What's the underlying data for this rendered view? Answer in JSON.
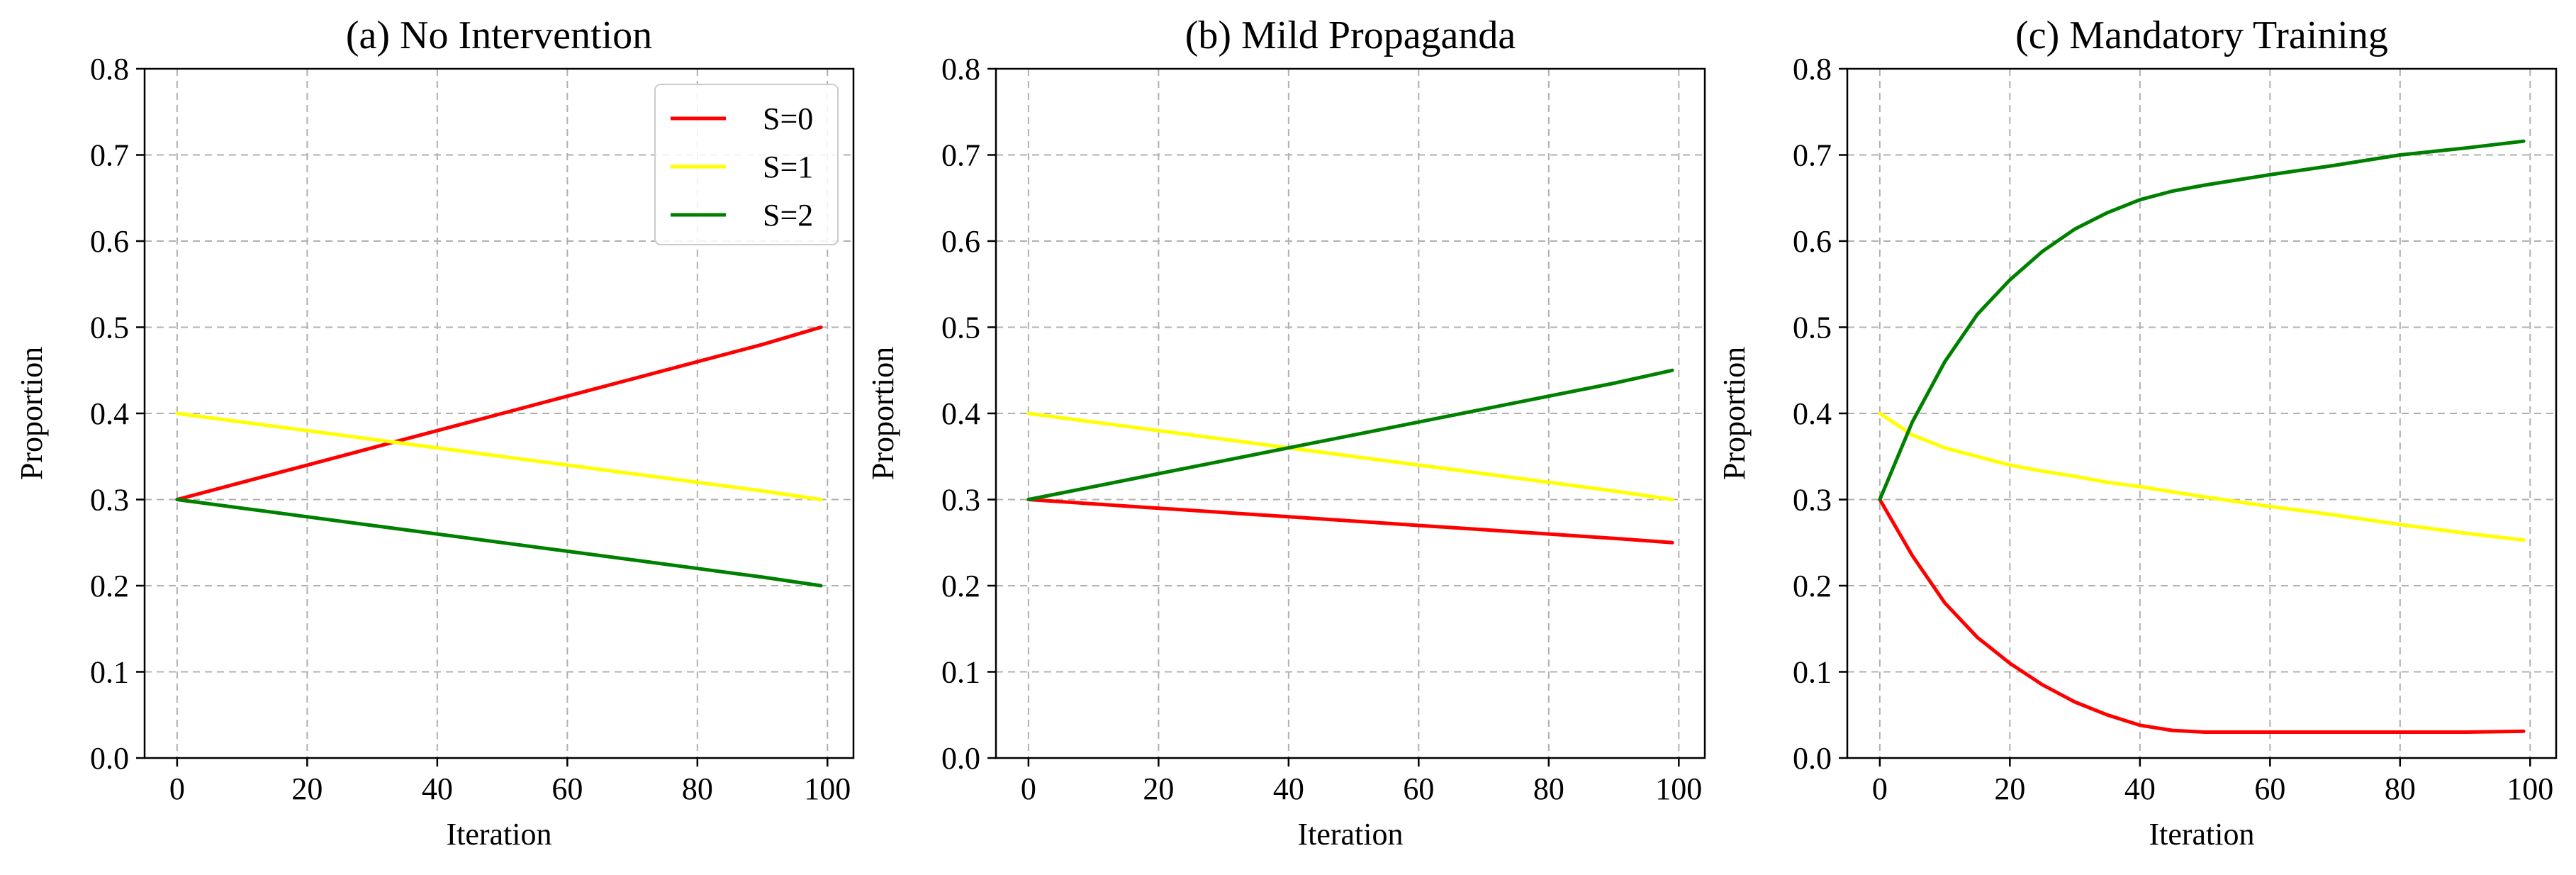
{
  "figure": {
    "panels": [
      "(a) No Intervention",
      "(b) Mild Propaganda",
      "(c) Mandatory Training"
    ]
  },
  "colors": {
    "S0": "#ff0000",
    "S1": "#ffff00",
    "S2": "#008000",
    "grid": "#b0b0b0",
    "axis": "#000000"
  },
  "chart_data": [
    {
      "type": "line",
      "title": "(a) No Intervention",
      "xlabel": "Iteration",
      "ylabel": "Proportion",
      "xlim": [
        -5,
        104
      ],
      "ylim": [
        0.0,
        0.8
      ],
      "xticks": [
        0,
        20,
        40,
        60,
        80,
        100
      ],
      "yticks": [
        "0.0",
        "0.1",
        "0.2",
        "0.3",
        "0.4",
        "0.5",
        "0.6",
        "0.7",
        "0.8"
      ],
      "grid": true,
      "legend": "top-right",
      "x": [
        0,
        10,
        20,
        30,
        40,
        50,
        60,
        70,
        80,
        90,
        99
      ],
      "series": [
        {
          "name": "S=0",
          "color": "#ff0000",
          "values": [
            0.3,
            0.32,
            0.34,
            0.36,
            0.38,
            0.4,
            0.42,
            0.44,
            0.46,
            0.48,
            0.5
          ]
        },
        {
          "name": "S=1",
          "color": "#ffff00",
          "values": [
            0.4,
            0.39,
            0.38,
            0.37,
            0.36,
            0.35,
            0.34,
            0.33,
            0.32,
            0.31,
            0.3
          ]
        },
        {
          "name": "S=2",
          "color": "#008000",
          "values": [
            0.3,
            0.29,
            0.28,
            0.27,
            0.26,
            0.25,
            0.24,
            0.23,
            0.22,
            0.21,
            0.2
          ]
        }
      ]
    },
    {
      "type": "line",
      "title": "(b) Mild Propaganda",
      "xlabel": "Iteration",
      "ylabel": "Proportion",
      "xlim": [
        -5,
        104
      ],
      "ylim": [
        0.0,
        0.8
      ],
      "xticks": [
        0,
        20,
        40,
        60,
        80,
        100
      ],
      "yticks": [
        "0.0",
        "0.1",
        "0.2",
        "0.3",
        "0.4",
        "0.5",
        "0.6",
        "0.7",
        "0.8"
      ],
      "grid": true,
      "x": [
        0,
        10,
        20,
        30,
        40,
        50,
        60,
        70,
        80,
        90,
        99
      ],
      "series": [
        {
          "name": "S=0",
          "color": "#ff0000",
          "values": [
            0.3,
            0.295,
            0.29,
            0.285,
            0.28,
            0.275,
            0.27,
            0.265,
            0.26,
            0.255,
            0.25
          ]
        },
        {
          "name": "S=1",
          "color": "#ffff00",
          "values": [
            0.4,
            0.39,
            0.38,
            0.37,
            0.36,
            0.35,
            0.34,
            0.33,
            0.32,
            0.31,
            0.3
          ]
        },
        {
          "name": "S=2",
          "color": "#008000",
          "values": [
            0.3,
            0.315,
            0.33,
            0.345,
            0.36,
            0.375,
            0.39,
            0.405,
            0.42,
            0.435,
            0.45
          ]
        }
      ]
    },
    {
      "type": "line",
      "title": "(c) Mandatory Training",
      "xlabel": "Iteration",
      "ylabel": "Proportion",
      "xlim": [
        -5,
        104
      ],
      "ylim": [
        0.0,
        0.8
      ],
      "xticks": [
        0,
        20,
        40,
        60,
        80,
        100
      ],
      "yticks": [
        "0.0",
        "0.1",
        "0.2",
        "0.3",
        "0.4",
        "0.5",
        "0.6",
        "0.7",
        "0.8"
      ],
      "grid": true,
      "x": [
        0,
        5,
        10,
        15,
        20,
        25,
        30,
        35,
        40,
        45,
        50,
        60,
        70,
        80,
        90,
        99
      ],
      "series": [
        {
          "name": "S=0",
          "color": "#ff0000",
          "values": [
            0.3,
            0.235,
            0.18,
            0.14,
            0.11,
            0.085,
            0.065,
            0.05,
            0.038,
            0.032,
            0.03,
            0.03,
            0.03,
            0.03,
            0.03,
            0.031
          ]
        },
        {
          "name": "S=1",
          "color": "#ffff00",
          "values": [
            0.4,
            0.375,
            0.36,
            0.35,
            0.34,
            0.333,
            0.327,
            0.32,
            0.315,
            0.309,
            0.303,
            0.292,
            0.282,
            0.271,
            0.261,
            0.253
          ]
        },
        {
          "name": "S=2",
          "color": "#008000",
          "values": [
            0.3,
            0.39,
            0.46,
            0.515,
            0.555,
            0.588,
            0.614,
            0.633,
            0.648,
            0.658,
            0.665,
            0.677,
            0.688,
            0.7,
            0.708,
            0.716
          ]
        }
      ]
    }
  ]
}
